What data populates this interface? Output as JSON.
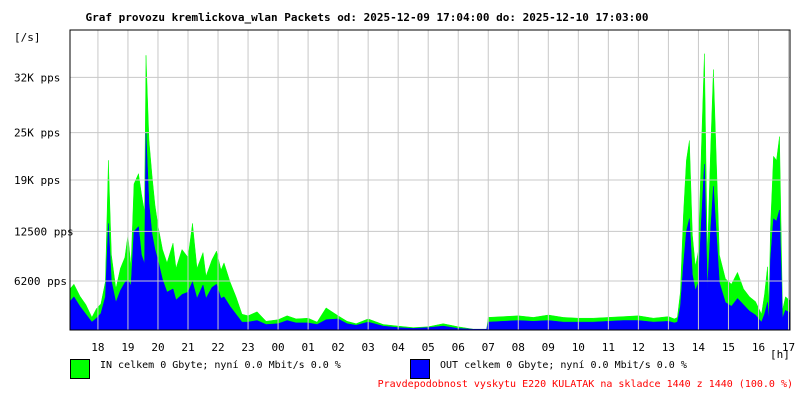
{
  "title": "Graf provozu kremlickova_wlan Packets od: 2025-12-09 17:04:00 do: 2025-12-10 17:03:00",
  "legend": [
    {
      "label": "IN celkem 0 Gbyte; nyní   0.0 Mbit/s 0.0 %",
      "color": "#00ff00"
    },
    {
      "label": "OUT celkem 0 Gbyte; nyní   0.0 Mbit/s 0.0 %",
      "color": "#0000ff"
    }
  ],
  "footer_note": "Pravdepodobnost vyskytu E220 KULATAK na skladce 1440 z 1440 (100.0 %)",
  "chart_data": {
    "type": "area",
    "title": "Graf provozu kremlickova_wlan Packets od: 2025-12-09 17:04:00 do: 2025-12-10 17:03:00",
    "ylabel": "[/s]",
    "xlabel": "[h]",
    "ylim": [
      0,
      38000
    ],
    "xlim": [
      17.07,
      41.05
    ],
    "y_ticks": [
      {
        "value": 6200,
        "label": "6200 pps"
      },
      {
        "value": 12500,
        "label": "12500 pps"
      },
      {
        "value": 19000,
        "label": "19K pps"
      },
      {
        "value": 25000,
        "label": "25K pps"
      },
      {
        "value": 32000,
        "label": "32K pps"
      }
    ],
    "x_ticks": [
      {
        "value": 18,
        "label": "18"
      },
      {
        "value": 19,
        "label": "19"
      },
      {
        "value": 20,
        "label": "20"
      },
      {
        "value": 21,
        "label": "21"
      },
      {
        "value": 22,
        "label": "22"
      },
      {
        "value": 23,
        "label": "23"
      },
      {
        "value": 24,
        "label": "00"
      },
      {
        "value": 25,
        "label": "01"
      },
      {
        "value": 26,
        "label": "02"
      },
      {
        "value": 27,
        "label": "03"
      },
      {
        "value": 28,
        "label": "04"
      },
      {
        "value": 29,
        "label": "05"
      },
      {
        "value": 30,
        "label": "06"
      },
      {
        "value": 31,
        "label": "07"
      },
      {
        "value": 32,
        "label": "08"
      },
      {
        "value": 33,
        "label": "09"
      },
      {
        "value": 34,
        "label": "10"
      },
      {
        "value": 35,
        "label": "11"
      },
      {
        "value": 36,
        "label": "12"
      },
      {
        "value": 37,
        "label": "13"
      },
      {
        "value": 38,
        "label": "14"
      },
      {
        "value": 39,
        "label": "15"
      },
      {
        "value": 40,
        "label": "16"
      },
      {
        "value": 41,
        "label": "17"
      }
    ],
    "grid": true,
    "series": [
      {
        "name": "IN",
        "color": "#00ff00",
        "x": [
          17.07,
          17.2,
          17.4,
          17.6,
          17.7,
          17.8,
          17.95,
          18.1,
          18.25,
          18.35,
          18.45,
          18.6,
          18.75,
          18.9,
          19.0,
          19.1,
          19.2,
          19.35,
          19.45,
          19.55,
          19.6,
          19.7,
          19.8,
          19.9,
          20.0,
          20.15,
          20.3,
          20.5,
          20.6,
          20.8,
          21.0,
          21.15,
          21.3,
          21.5,
          21.6,
          21.8,
          21.95,
          22.1,
          22.2,
          22.4,
          22.6,
          22.8,
          23.0,
          23.3,
          23.6,
          24.0,
          24.3,
          24.6,
          25.0,
          25.3,
          25.6,
          26.0,
          26.3,
          26.6,
          27.0,
          27.5,
          28.0,
          28.5,
          29.0,
          29.5,
          30.0,
          30.5,
          30.95,
          31.0,
          31.5,
          32.0,
          32.5,
          33.0,
          33.5,
          34.0,
          34.5,
          35.0,
          35.5,
          36.0,
          36.5,
          37.0,
          37.2,
          37.3,
          37.4,
          37.5,
          37.6,
          37.7,
          37.8,
          37.9,
          38.0,
          38.1,
          38.2,
          38.3,
          38.4,
          38.5,
          38.7,
          38.9,
          39.1,
          39.3,
          39.5,
          39.7,
          39.9,
          40.1,
          40.2,
          40.3,
          40.35,
          40.4,
          40.5,
          40.6,
          40.7,
          40.8,
          40.9,
          41.05
        ],
        "values": [
          5200,
          5800,
          4300,
          3200,
          2400,
          1600,
          2700,
          3300,
          6100,
          21500,
          9500,
          5200,
          7800,
          9200,
          12000,
          8000,
          18500,
          19800,
          17200,
          15000,
          34800,
          24000,
          19600,
          15800,
          13200,
          10200,
          8500,
          11000,
          7800,
          10200,
          9200,
          13500,
          7800,
          9800,
          6800,
          8900,
          10000,
          7600,
          8500,
          6100,
          4200,
          2000,
          1800,
          2300,
          1100,
          1300,
          1800,
          1400,
          1500,
          1000,
          2800,
          1800,
          1100,
          800,
          1400,
          700,
          500,
          300,
          400,
          800,
          400,
          100,
          100,
          1600,
          1700,
          1800,
          1600,
          1900,
          1600,
          1500,
          1500,
          1600,
          1700,
          1800,
          1500,
          1700,
          1400,
          1600,
          4800,
          14500,
          21500,
          24000,
          12000,
          8000,
          10000,
          23000,
          35000,
          9000,
          22000,
          33000,
          9500,
          6500,
          5800,
          7300,
          5200,
          4200,
          3600,
          2000,
          4500,
          8000,
          3000,
          13000,
          22000,
          21500,
          24500,
          2500,
          4200,
          3700
        ]
      },
      {
        "name": "OUT",
        "color": "#0000ff",
        "x": [
          17.07,
          17.2,
          17.4,
          17.6,
          17.7,
          17.8,
          17.95,
          18.1,
          18.25,
          18.35,
          18.45,
          18.6,
          18.75,
          18.9,
          19.0,
          19.1,
          19.2,
          19.35,
          19.45,
          19.55,
          19.6,
          19.7,
          19.8,
          19.9,
          20.0,
          20.15,
          20.3,
          20.5,
          20.6,
          20.8,
          21.0,
          21.15,
          21.3,
          21.5,
          21.6,
          21.8,
          21.95,
          22.1,
          22.2,
          22.4,
          22.6,
          22.8,
          23.0,
          23.3,
          23.6,
          24.0,
          24.3,
          24.6,
          25.0,
          25.3,
          25.6,
          26.0,
          26.3,
          26.6,
          27.0,
          27.5,
          28.0,
          28.5,
          29.0,
          29.5,
          30.0,
          30.5,
          30.95,
          31.0,
          31.5,
          32.0,
          32.5,
          33.0,
          33.5,
          34.0,
          34.5,
          35.0,
          35.5,
          36.0,
          36.5,
          37.0,
          37.2,
          37.3,
          37.4,
          37.5,
          37.6,
          37.7,
          37.8,
          37.9,
          38.0,
          38.1,
          38.2,
          38.3,
          38.4,
          38.5,
          38.7,
          38.9,
          39.1,
          39.3,
          39.5,
          39.7,
          39.9,
          40.1,
          40.2,
          40.3,
          40.35,
          40.4,
          40.5,
          40.6,
          40.7,
          40.8,
          40.9,
          41.05
        ],
        "values": [
          3600,
          4200,
          3000,
          2000,
          1500,
          1000,
          1500,
          2100,
          4200,
          13500,
          6200,
          3500,
          5000,
          6000,
          6400,
          5600,
          12500,
          13100,
          9500,
          8400,
          25000,
          16000,
          12200,
          10200,
          8800,
          6400,
          4800,
          5200,
          3800,
          4500,
          4800,
          6100,
          4000,
          5700,
          4000,
          5400,
          5800,
          4000,
          4200,
          3000,
          2000,
          1000,
          1000,
          1200,
          700,
          800,
          1200,
          900,
          900,
          700,
          1300,
          1400,
          800,
          600,
          1000,
          500,
          300,
          200,
          300,
          500,
          200,
          100,
          100,
          1000,
          1100,
          1200,
          1100,
          1200,
          1000,
          1000,
          1000,
          1100,
          1200,
          1200,
          1000,
          1100,
          900,
          1000,
          3000,
          8200,
          12500,
          14100,
          7000,
          5000,
          6000,
          13800,
          21000,
          5000,
          12200,
          18200,
          6000,
          3500,
          3000,
          4000,
          3200,
          2400,
          1900,
          1000,
          2000,
          3500,
          1200,
          9000,
          14100,
          13800,
          15200,
          1500,
          2500,
          2200
        ]
      }
    ]
  }
}
